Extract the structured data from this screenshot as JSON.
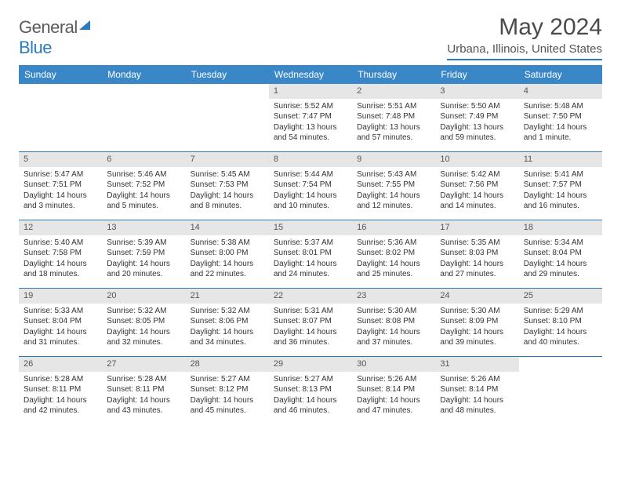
{
  "logo": {
    "textPrefix": "General",
    "textSuffix": "Blue"
  },
  "title": "May 2024",
  "location": "Urbana, Illinois, United States",
  "colors": {
    "header_bg": "#3a87c8",
    "header_text": "#ffffff",
    "rule": "#2b7bbf",
    "daynum_bg": "#e6e6e6",
    "body_text": "#333333"
  },
  "weekdays": [
    "Sunday",
    "Monday",
    "Tuesday",
    "Wednesday",
    "Thursday",
    "Friday",
    "Saturday"
  ],
  "weeks": [
    [
      null,
      null,
      null,
      {
        "n": "1",
        "sunrise": "5:52 AM",
        "sunset": "7:47 PM",
        "daylight": "13 hours and 54 minutes."
      },
      {
        "n": "2",
        "sunrise": "5:51 AM",
        "sunset": "7:48 PM",
        "daylight": "13 hours and 57 minutes."
      },
      {
        "n": "3",
        "sunrise": "5:50 AM",
        "sunset": "7:49 PM",
        "daylight": "13 hours and 59 minutes."
      },
      {
        "n": "4",
        "sunrise": "5:48 AM",
        "sunset": "7:50 PM",
        "daylight": "14 hours and 1 minute."
      }
    ],
    [
      {
        "n": "5",
        "sunrise": "5:47 AM",
        "sunset": "7:51 PM",
        "daylight": "14 hours and 3 minutes."
      },
      {
        "n": "6",
        "sunrise": "5:46 AM",
        "sunset": "7:52 PM",
        "daylight": "14 hours and 5 minutes."
      },
      {
        "n": "7",
        "sunrise": "5:45 AM",
        "sunset": "7:53 PM",
        "daylight": "14 hours and 8 minutes."
      },
      {
        "n": "8",
        "sunrise": "5:44 AM",
        "sunset": "7:54 PM",
        "daylight": "14 hours and 10 minutes."
      },
      {
        "n": "9",
        "sunrise": "5:43 AM",
        "sunset": "7:55 PM",
        "daylight": "14 hours and 12 minutes."
      },
      {
        "n": "10",
        "sunrise": "5:42 AM",
        "sunset": "7:56 PM",
        "daylight": "14 hours and 14 minutes."
      },
      {
        "n": "11",
        "sunrise": "5:41 AM",
        "sunset": "7:57 PM",
        "daylight": "14 hours and 16 minutes."
      }
    ],
    [
      {
        "n": "12",
        "sunrise": "5:40 AM",
        "sunset": "7:58 PM",
        "daylight": "14 hours and 18 minutes."
      },
      {
        "n": "13",
        "sunrise": "5:39 AM",
        "sunset": "7:59 PM",
        "daylight": "14 hours and 20 minutes."
      },
      {
        "n": "14",
        "sunrise": "5:38 AM",
        "sunset": "8:00 PM",
        "daylight": "14 hours and 22 minutes."
      },
      {
        "n": "15",
        "sunrise": "5:37 AM",
        "sunset": "8:01 PM",
        "daylight": "14 hours and 24 minutes."
      },
      {
        "n": "16",
        "sunrise": "5:36 AM",
        "sunset": "8:02 PM",
        "daylight": "14 hours and 25 minutes."
      },
      {
        "n": "17",
        "sunrise": "5:35 AM",
        "sunset": "8:03 PM",
        "daylight": "14 hours and 27 minutes."
      },
      {
        "n": "18",
        "sunrise": "5:34 AM",
        "sunset": "8:04 PM",
        "daylight": "14 hours and 29 minutes."
      }
    ],
    [
      {
        "n": "19",
        "sunrise": "5:33 AM",
        "sunset": "8:04 PM",
        "daylight": "14 hours and 31 minutes."
      },
      {
        "n": "20",
        "sunrise": "5:32 AM",
        "sunset": "8:05 PM",
        "daylight": "14 hours and 32 minutes."
      },
      {
        "n": "21",
        "sunrise": "5:32 AM",
        "sunset": "8:06 PM",
        "daylight": "14 hours and 34 minutes."
      },
      {
        "n": "22",
        "sunrise": "5:31 AM",
        "sunset": "8:07 PM",
        "daylight": "14 hours and 36 minutes."
      },
      {
        "n": "23",
        "sunrise": "5:30 AM",
        "sunset": "8:08 PM",
        "daylight": "14 hours and 37 minutes."
      },
      {
        "n": "24",
        "sunrise": "5:30 AM",
        "sunset": "8:09 PM",
        "daylight": "14 hours and 39 minutes."
      },
      {
        "n": "25",
        "sunrise": "5:29 AM",
        "sunset": "8:10 PM",
        "daylight": "14 hours and 40 minutes."
      }
    ],
    [
      {
        "n": "26",
        "sunrise": "5:28 AM",
        "sunset": "8:11 PM",
        "daylight": "14 hours and 42 minutes."
      },
      {
        "n": "27",
        "sunrise": "5:28 AM",
        "sunset": "8:11 PM",
        "daylight": "14 hours and 43 minutes."
      },
      {
        "n": "28",
        "sunrise": "5:27 AM",
        "sunset": "8:12 PM",
        "daylight": "14 hours and 45 minutes."
      },
      {
        "n": "29",
        "sunrise": "5:27 AM",
        "sunset": "8:13 PM",
        "daylight": "14 hours and 46 minutes."
      },
      {
        "n": "30",
        "sunrise": "5:26 AM",
        "sunset": "8:14 PM",
        "daylight": "14 hours and 47 minutes."
      },
      {
        "n": "31",
        "sunrise": "5:26 AM",
        "sunset": "8:14 PM",
        "daylight": "14 hours and 48 minutes."
      },
      null
    ]
  ],
  "labels": {
    "sunrise": "Sunrise: ",
    "sunset": "Sunset: ",
    "daylight": "Daylight: "
  }
}
